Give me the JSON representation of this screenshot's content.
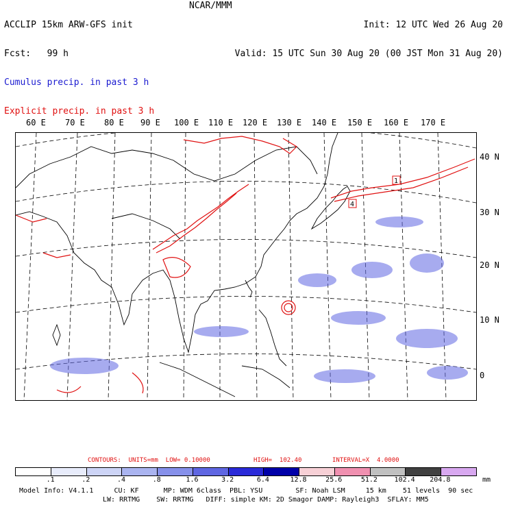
{
  "header": {
    "left_line1": "ACCLIP 15km ARW-GFS init",
    "left_line2": "Fcst:   99 h",
    "center": "NCAR/MMM",
    "right_line1": "Init: 12 UTC Wed 26 Aug 20",
    "right_line2": "Valid: 15 UTC Sun 30 Aug 20 (00 JST Mon 31 Aug 20)",
    "legend_cumulus": "Cumulus precip. in past 3 h",
    "legend_explicit": "Explicit precip. in past 3 h"
  },
  "colors": {
    "cumulus": "#1a1ad0",
    "explicit": "#e01010",
    "coast": "#000000",
    "grid": "#000000"
  },
  "map": {
    "lon_labels": [
      "60 E",
      "70 E",
      "80 E",
      "90 E",
      "100 E",
      "110 E",
      "120 E",
      "130 E",
      "140 E",
      "150 E",
      "160 E",
      "170 E"
    ],
    "lat_labels": [
      "40 N",
      "30 N",
      "20 N",
      "10 N",
      "0"
    ],
    "box_labels": [
      "1",
      "4"
    ]
  },
  "contour_info": {
    "units": "CONTOURS:  UNITS=mm  LOW= 0.10000",
    "high": "HIGH=  102.40",
    "interval": "INTERVAL=X  4.0000"
  },
  "colorbar": {
    "unit": "mm",
    "labels": [
      ".1",
      ".2",
      ".4",
      ".8",
      "1.6",
      "3.2",
      "6.4",
      "12.8",
      "25.6",
      "51.2",
      "102.4",
      "204.8"
    ],
    "colors": [
      "#ffffff",
      "#e8ecfb",
      "#cdd4f6",
      "#aab4f0",
      "#8690ea",
      "#5f66e2",
      "#2a2ad8",
      "#0000a8",
      "#f7d0d6",
      "#f090b0",
      "#c0c0c0",
      "#404040",
      "#d8a8f0"
    ]
  },
  "model_info": {
    "line1": "Model Info: V4.1.1     CU: KF      MP: WDM 6class  PBL: YSU        SF: Noah LSM     15 km    51 levels  90 sec",
    "line2": "LW: RRTMG    SW: RRTMG   DIFF: simple KM: 2D Smagor DAMP: Rayleigh3  SFLAY: MM5"
  }
}
